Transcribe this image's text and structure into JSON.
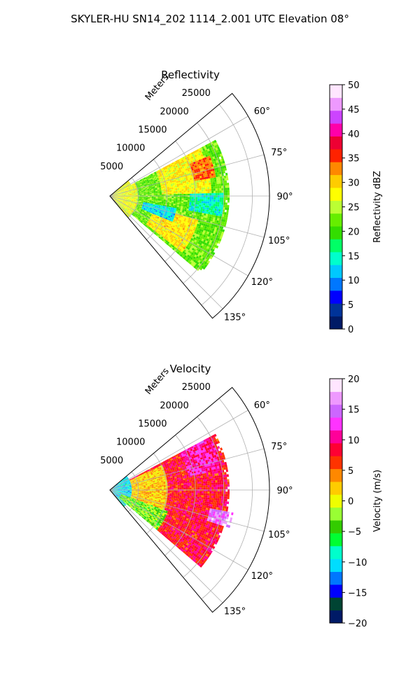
{
  "figure_title": "SKYLER-HU  SN14_202  1114_2.001 UTC Elevation 08°",
  "chart_data": [
    {
      "type": "heatmap",
      "projection": "polar-sector",
      "title": "Reflectivity",
      "range_label": "Meters",
      "range_ticks": [
        5000,
        10000,
        15000,
        20000,
        25000
      ],
      "r_max": 28000,
      "azimuth_range_deg": [
        50,
        140
      ],
      "azimuth_ticks": [
        "60°",
        "75°",
        "90°",
        "105°",
        "120°",
        "135°"
      ],
      "azimuth_tick_values": [
        60,
        75,
        90,
        105,
        120,
        135
      ],
      "grid": true,
      "colorbar": {
        "label": "Reflectivity dBZ",
        "min": 0,
        "max": 50,
        "ticks": [
          "0",
          "5",
          "10",
          "15",
          "20",
          "25",
          "30",
          "35",
          "40",
          "45",
          "50"
        ],
        "tick_values": [
          0,
          5,
          10,
          15,
          20,
          25,
          30,
          35,
          40,
          45,
          50
        ],
        "colors": [
          "#001a66",
          "#003399",
          "#0000ff",
          "#0077ff",
          "#00c8ff",
          "#00ffcc",
          "#00ff66",
          "#33dd00",
          "#66ee00",
          "#bbff33",
          "#ffff00",
          "#ffcc00",
          "#ff8800",
          "#ff2200",
          "#ee0033",
          "#ff00aa",
          "#cc44ff",
          "#ee99ff",
          "#ffe6ff"
        ]
      },
      "field_features": [
        {
          "kind": "background",
          "azimuth": [
            62,
            130
          ],
          "range": [
            0,
            21000
          ],
          "value": 22
        },
        {
          "kind": "cell",
          "azimuth": [
            60,
            88
          ],
          "range": [
            9000,
            18000
          ],
          "value": 28
        },
        {
          "kind": "cell",
          "azimuth": [
            68,
            80
          ],
          "range": [
            15000,
            19000
          ],
          "value": 34
        },
        {
          "kind": "cell",
          "azimuth": [
            105,
            128
          ],
          "range": [
            8000,
            16000
          ],
          "value": 29
        },
        {
          "kind": "cell",
          "azimuth": [
            88,
            100
          ],
          "range": [
            14000,
            20000
          ],
          "value": 15
        },
        {
          "kind": "cell",
          "azimuth": [
            100,
            112
          ],
          "range": [
            6000,
            12000
          ],
          "value": 13
        },
        {
          "kind": "cell",
          "azimuth": [
            50,
            140
          ],
          "range": [
            0,
            5000
          ],
          "value": 27
        }
      ]
    },
    {
      "type": "heatmap",
      "projection": "polar-sector",
      "title": "Velocity",
      "range_label": "Meters",
      "range_ticks": [
        5000,
        10000,
        15000,
        20000,
        25000
      ],
      "r_max": 28000,
      "azimuth_range_deg": [
        50,
        140
      ],
      "azimuth_ticks": [
        "60°",
        "75°",
        "90°",
        "105°",
        "120°",
        "135°"
      ],
      "azimuth_tick_values": [
        60,
        75,
        90,
        105,
        120,
        135
      ],
      "grid": true,
      "colorbar": {
        "label": "Velocity (m/s)",
        "min": -20,
        "max": 20,
        "ticks": [
          "−20",
          "−15",
          "−10",
          "−5",
          "0",
          "5",
          "10",
          "15",
          "20"
        ],
        "tick_values": [
          -20,
          -15,
          -10,
          -5,
          0,
          5,
          10,
          15,
          20
        ],
        "colors": [
          "#001a66",
          "#004433",
          "#0000ff",
          "#0077ff",
          "#00ddff",
          "#00ffcc",
          "#00ff33",
          "#33cc00",
          "#99ff33",
          "#eeff00",
          "#ffcc00",
          "#ff8800",
          "#ff3300",
          "#ff0033",
          "#ff0099",
          "#ff33ff",
          "#cc66ff",
          "#ee99ff",
          "#ffe6ff"
        ]
      },
      "field_features": [
        {
          "kind": "background",
          "azimuth": [
            62,
            130
          ],
          "range": [
            0,
            21000
          ],
          "value": 8
        },
        {
          "kind": "cell",
          "azimuth": [
            50,
            140
          ],
          "range": [
            0,
            4000
          ],
          "value": -10
        },
        {
          "kind": "cell",
          "azimuth": [
            110,
            130
          ],
          "range": [
            2000,
            11000
          ],
          "value": -3
        },
        {
          "kind": "cell",
          "azimuth": [
            65,
            110
          ],
          "range": [
            4000,
            10000
          ],
          "value": 2
        },
        {
          "kind": "cell",
          "azimuth": [
            62,
            80
          ],
          "range": [
            14000,
            20000
          ],
          "value": 11
        },
        {
          "kind": "cell",
          "azimuth": [
            100,
            108
          ],
          "range": [
            18000,
            22000
          ],
          "value": 15
        }
      ]
    }
  ]
}
